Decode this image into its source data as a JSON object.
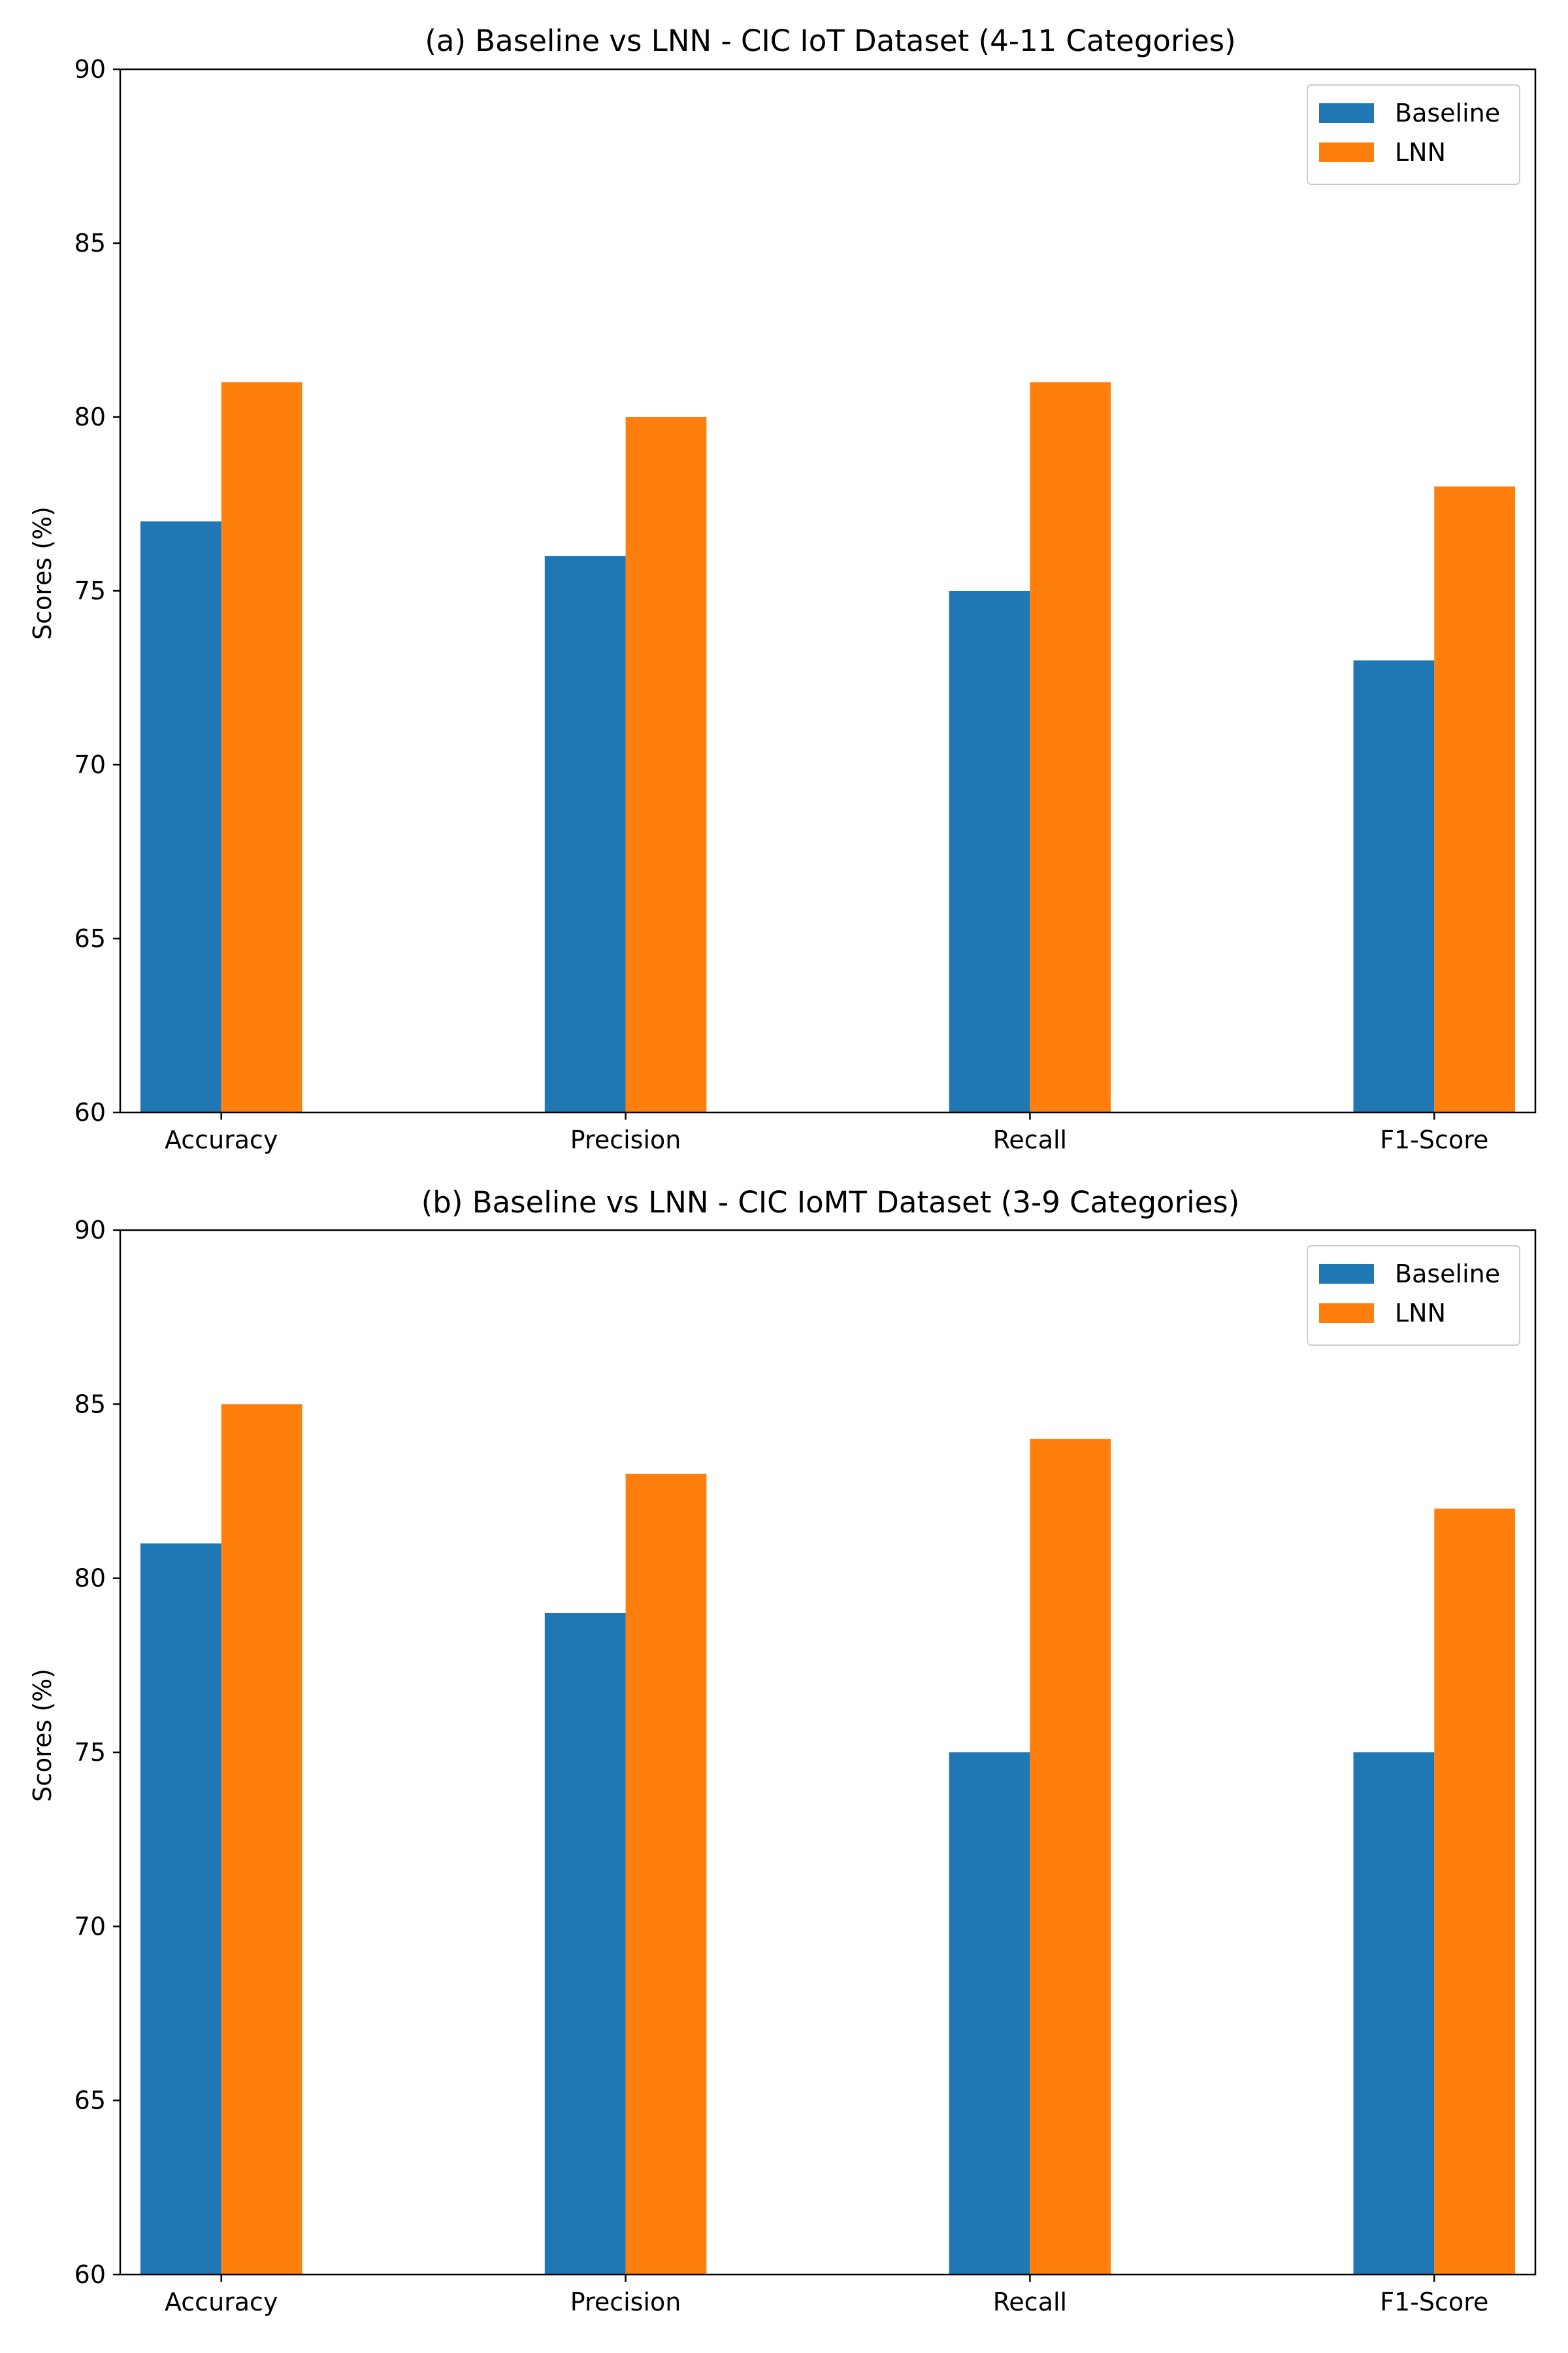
{
  "colors": {
    "baseline": "#1f77b4",
    "lnn": "#ff7f0e"
  },
  "chart_data": [
    {
      "type": "bar",
      "title": "(a) Baseline vs LNN - CIC IoT Dataset (4-11 Categories)",
      "xlabel": "",
      "ylabel": "Scores (%)",
      "ylim": [
        60,
        90
      ],
      "yticks": [
        60,
        65,
        70,
        75,
        80,
        85,
        90
      ],
      "categories": [
        "Accuracy",
        "Precision",
        "Recall",
        "F1-Score"
      ],
      "series": [
        {
          "name": "Baseline",
          "values": [
            77,
            76,
            75,
            73
          ]
        },
        {
          "name": "LNN",
          "values": [
            81,
            80,
            81,
            78
          ]
        }
      ],
      "legend": "top-right",
      "grid": false
    },
    {
      "type": "bar",
      "title": "(b) Baseline vs LNN - CIC IoMT Dataset (3-9 Categories)",
      "xlabel": "",
      "ylabel": "Scores (%)",
      "ylim": [
        60,
        90
      ],
      "yticks": [
        60,
        65,
        70,
        75,
        80,
        85,
        90
      ],
      "categories": [
        "Accuracy",
        "Precision",
        "Recall",
        "F1-Score"
      ],
      "series": [
        {
          "name": "Baseline",
          "values": [
            81,
            79,
            75,
            75
          ]
        },
        {
          "name": "LNN",
          "values": [
            85,
            83,
            84,
            82
          ]
        }
      ],
      "legend": "top-right",
      "grid": false
    }
  ]
}
